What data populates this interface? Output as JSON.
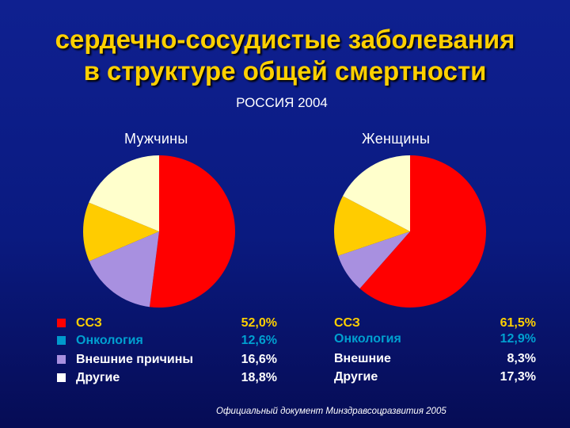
{
  "title_line1": "сердечно-сосудистые заболевания",
  "title_line2": "в структуре общей смертности",
  "subtitle": "РОССИЯ 2004",
  "footnote": "Официальный документ Минздравсоцразвития 2005",
  "chart_data": [
    {
      "type": "pie",
      "title": "Мужчины",
      "slices": [
        {
          "label": "ССЗ",
          "value": 52.0,
          "value_text": "52,0%",
          "color": "#ff0000",
          "label_color": "#ffd000"
        },
        {
          "label": "Онкология",
          "value": 12.6,
          "value_text": "12,6%",
          "color": "#ffcc00",
          "label_color": "#00a0d0"
        },
        {
          "label": "Внешние причины",
          "value": 16.6,
          "value_text": "16,6%",
          "color": "#a890e0",
          "label_color": "#ffffff"
        },
        {
          "label": "Другие",
          "value": 18.8,
          "value_text": "18,8%",
          "color": "#ffffcc",
          "label_color": "#ffffff"
        }
      ],
      "swatch_colors": [
        "#ff0000",
        "#0099cc",
        "#a890e0",
        "#ffffff"
      ]
    },
    {
      "type": "pie",
      "title": "Женщины",
      "slices": [
        {
          "label": "ССЗ",
          "value": 61.5,
          "value_text": "61,5%",
          "color": "#ff0000",
          "label_color": "#ffd000"
        },
        {
          "label": "Онкология",
          "value": 12.9,
          "value_text": "12,9%",
          "color": "#ffcc00",
          "label_color": "#00a0d0"
        },
        {
          "label": "Внешние",
          "value": 8.3,
          "value_text": "8,3%",
          "color": "#a890e0",
          "label_color": "#ffffff"
        },
        {
          "label": "Другие",
          "value": 17.3,
          "value_text": "17,3%",
          "color": "#ffffcc",
          "label_color": "#ffffff"
        }
      ]
    }
  ]
}
